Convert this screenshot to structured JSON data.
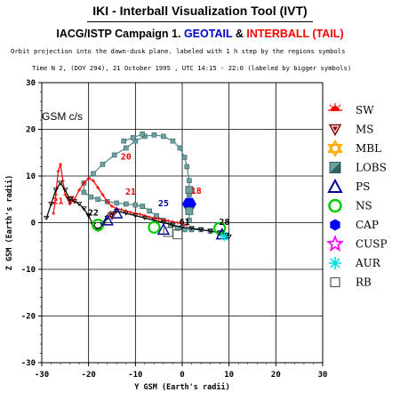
{
  "header": {
    "title": "IKI - Interball Visualization Tool (IVT)",
    "subtitle_part1": "IACG/ISTP Campaign 1.",
    "subtitle_part2": "GEOTAIL",
    "subtitle_part3": "&",
    "subtitle_part4": "INTERBALL (TAIL)",
    "description": "Orbit projection into the dawn-dusk plane. labeled with 1 h step by the regions symbols",
    "time_info": "Time N 2, (DOY 294), 21 October 1995 , UTC 14:15 - 22:0 (labeled by bigger symbols)",
    "coord_system": "GSM c/s"
  },
  "colors": {
    "geotail": "#0000cc",
    "interball": "#ff0000",
    "grid": "#000000",
    "track_teal": "#4a8a8a",
    "track_red": "#ff0000",
    "track_black": "#000000"
  },
  "chart_data": {
    "type": "scatter",
    "title": "IKI - Interball Visualization Tool (IVT)",
    "xlabel": "Y GSM (Earth's radii)",
    "ylabel": "Z GSM (Earth's radii)",
    "xlim": [
      -30,
      30
    ],
    "ylim": [
      -30,
      30
    ],
    "x_ticks": [
      -30,
      -20,
      -10,
      0,
      10,
      20,
      30
    ],
    "y_ticks": [
      -30,
      -20,
      -10,
      0,
      10,
      20,
      30
    ],
    "grid": true,
    "legend_placement": "right",
    "legend": [
      {
        "symbol": "SW",
        "label": "SW",
        "color": "#ff0000",
        "icon": "sun-icon"
      },
      {
        "symbol": "MS",
        "label": "MS",
        "color": "#8b0000",
        "icon": "triangle-down-icon"
      },
      {
        "symbol": "MBL",
        "label": "MBL",
        "color": "#ffaa00",
        "icon": "star-of-david-icon"
      },
      {
        "symbol": "LOBS",
        "label": "LOBS",
        "color": "#4a8a8a",
        "icon": "square-icon"
      },
      {
        "symbol": "PS",
        "label": "PS",
        "color": "#000099",
        "icon": "triangle-up-icon"
      },
      {
        "symbol": "NS",
        "label": "NS",
        "color": "#00cc00",
        "icon": "circle-icon"
      },
      {
        "symbol": "CAP",
        "label": "CAP",
        "color": "#0000ff",
        "icon": "hexagon-icon"
      },
      {
        "symbol": "CUSP",
        "label": "CUSP",
        "color": "#ff00ff",
        "icon": "star-icon"
      },
      {
        "symbol": "AUR",
        "label": "AUR",
        "color": "#00dddd",
        "icon": "asterisk-icon"
      },
      {
        "symbol": "RB",
        "label": "RB",
        "color": "#555555",
        "icon": "open-square-icon"
      }
    ],
    "series": [
      {
        "color": "#4a8a8a",
        "x": [
          1.5,
          1.5,
          1.5,
          1.5,
          1.0,
          0.5,
          -0.5,
          -2.0,
          -4.0,
          -6.0,
          -8.0,
          -10.0,
          -12.0,
          -14.5,
          -17.0,
          -19.0,
          -21.0,
          -21.0,
          -19.5,
          -18.0,
          -16.0,
          -14.0,
          -12.0,
          -10.0,
          -8.5
        ],
        "y": [
          0.5,
          3,
          6,
          9,
          12,
          14,
          16,
          17.5,
          18.5,
          18.8,
          18.5,
          17.5,
          16,
          14.5,
          12.5,
          10.5,
          8.5,
          6.5,
          5.5,
          5,
          4.5,
          4.2,
          4,
          3.8,
          3.5
        ]
      },
      {
        "color": "#4a8a8a",
        "x": [
          -8.5,
          -7.0,
          -5.5,
          -4.0,
          -2.5,
          -1.0,
          0.5,
          2.0,
          4.0,
          6.0,
          8.0,
          9.5
        ],
        "y": [
          3.5,
          2.5,
          1.5,
          0.5,
          -0.5,
          -1.2,
          -1.5,
          -1.5,
          -1.5,
          -1.8,
          -2.2,
          -2.8
        ]
      },
      {
        "color": "#4a8a8a",
        "x": [
          -12.5,
          -10.5,
          -8.5
        ],
        "y": [
          17.5,
          18.2,
          19.0
        ]
      },
      {
        "color": "#ff0000",
        "x": [
          -27.5,
          -27.0,
          -26.5,
          -26.0,
          -25.5,
          -25.0,
          -24.0,
          -23.0,
          -22.0,
          -21.0,
          -20.0,
          -19.0,
          -18.0,
          -17.0,
          -16.0,
          -15.0,
          -14.0,
          -13.0,
          -12.0,
          -11.0,
          -10.0,
          -9.0,
          -8.0,
          -7.0,
          -6.0,
          -5.0,
          -4.0,
          -3.0,
          -2.0,
          -1.0,
          0.0,
          1.0
        ],
        "y": [
          2.0,
          6.0,
          11.0,
          12.5,
          9.0,
          6.0,
          4.0,
          5.0,
          7.0,
          8.5,
          9.5,
          9.0,
          7.5,
          6.0,
          4.5,
          3.5,
          3.0,
          2.8,
          2.5,
          2.2,
          2.0,
          1.8,
          1.5,
          1.2,
          1.0,
          0.8,
          0.6,
          0.4,
          0.2,
          0.0,
          -0.2,
          -0.5
        ]
      },
      {
        "color": "#000000",
        "x": [
          -29.0,
          -28.0,
          -27.0,
          -26.0,
          -25.0,
          -24.0,
          -23.0,
          -22.0,
          -21.0,
          -20.0,
          -19.0,
          -18.0,
          -17.0,
          -16.0,
          -15.0,
          -14.0
        ],
        "y": [
          1.0,
          4.0,
          7.0,
          8.5,
          7.0,
          5.0,
          4.5,
          4.0,
          3.0,
          1.5,
          -0.5,
          -1.5,
          -0.5,
          1.0,
          2.0,
          2.5
        ]
      },
      {
        "color": "#000000",
        "x": [
          -14.0,
          -12.0,
          -10.0,
          -8.0,
          -6.0,
          -4.0,
          -2.0,
          0.0,
          2.0,
          4.0,
          6.0,
          8.0,
          9.5,
          10.0
        ],
        "y": [
          2.5,
          2.0,
          1.5,
          1.0,
          0.5,
          0.0,
          -0.5,
          -1.0,
          -1.2,
          -1.5,
          -1.8,
          -2.2,
          -2.6,
          -3.0
        ]
      }
    ],
    "labels": [
      {
        "text": "21",
        "x": -26.5,
        "y": 4.0,
        "color": "#ff0000"
      },
      {
        "text": "20",
        "x": -12.0,
        "y": 13.5,
        "color": "#ff0000"
      },
      {
        "text": "21",
        "x": -11.0,
        "y": 6.0,
        "color": "#ff0000"
      },
      {
        "text": "22",
        "x": -19.0,
        "y": 1.5,
        "color": "#000000"
      },
      {
        "text": "25",
        "x": -4.0,
        "y": 3.5,
        "color": "#000099"
      },
      {
        "text": "18",
        "x": 3.0,
        "y": 6.2,
        "color": "#ff0000"
      },
      {
        "text": "61",
        "x": 0.5,
        "y": -0.5,
        "color": "#000000"
      },
      {
        "text": "28",
        "x": 9.0,
        "y": -0.5,
        "color": "#000000"
      }
    ],
    "markers": [
      {
        "type": "NS",
        "x": -18.0,
        "y": -0.5
      },
      {
        "type": "NS",
        "x": -6.0,
        "y": -1.0
      },
      {
        "type": "NS",
        "x": 8.0,
        "y": -1.2
      },
      {
        "type": "CAP",
        "x": 1.5,
        "y": 4.0
      },
      {
        "type": "PS",
        "x": -16.0,
        "y": 0.5
      },
      {
        "type": "PS",
        "x": -14.0,
        "y": 2.0
      },
      {
        "type": "PS",
        "x": -4.0,
        "y": -1.5
      },
      {
        "type": "PS",
        "x": 8.5,
        "y": -2.5
      },
      {
        "type": "LOBS",
        "x": 1.5,
        "y": 7.0
      },
      {
        "type": "LOBS",
        "x": 1.5,
        "y": 2.5
      },
      {
        "type": "RB",
        "x": -3.0,
        "y": -2.0
      },
      {
        "type": "RB",
        "x": -1.0,
        "y": -2.5
      },
      {
        "type": "AUR",
        "x": 9.0,
        "y": -3.0
      },
      {
        "type": "MS",
        "x": -24.0,
        "y": 5.0
      },
      {
        "type": "MS",
        "x": -15.0,
        "y": 1.5
      }
    ]
  }
}
